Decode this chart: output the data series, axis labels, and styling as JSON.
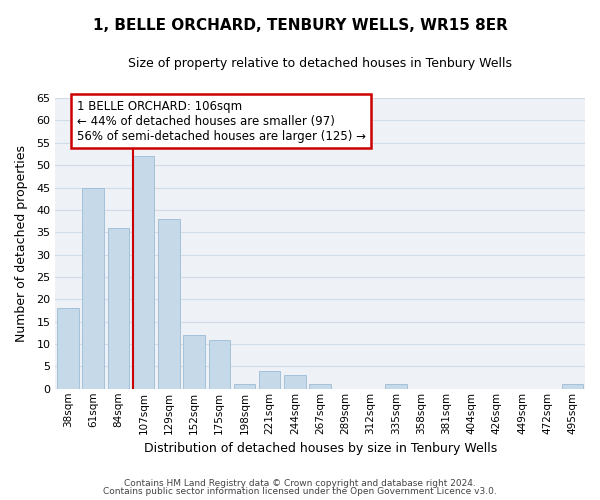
{
  "title": "1, BELLE ORCHARD, TENBURY WELLS, WR15 8ER",
  "subtitle": "Size of property relative to detached houses in Tenbury Wells",
  "xlabel": "Distribution of detached houses by size in Tenbury Wells",
  "ylabel": "Number of detached properties",
  "bar_labels": [
    "38sqm",
    "61sqm",
    "84sqm",
    "107sqm",
    "129sqm",
    "152sqm",
    "175sqm",
    "198sqm",
    "221sqm",
    "244sqm",
    "267sqm",
    "289sqm",
    "312sqm",
    "335sqm",
    "358sqm",
    "381sqm",
    "404sqm",
    "426sqm",
    "449sqm",
    "472sqm",
    "495sqm"
  ],
  "bar_values": [
    18,
    45,
    36,
    52,
    38,
    12,
    11,
    1,
    4,
    3,
    1,
    0,
    0,
    1,
    0,
    0,
    0,
    0,
    0,
    0,
    1
  ],
  "bar_color": "#c5d9e8",
  "bar_edge_color": "#9bbcd4",
  "highlight_bar_index": 3,
  "annotation_text": "1 BELLE ORCHARD: 106sqm\n← 44% of detached houses are smaller (97)\n56% of semi-detached houses are larger (125) →",
  "annotation_box_color": "#ffffff",
  "annotation_box_edge": "#cc0000",
  "ylim": [
    0,
    65
  ],
  "yticks": [
    0,
    5,
    10,
    15,
    20,
    25,
    30,
    35,
    40,
    45,
    50,
    55,
    60,
    65
  ],
  "grid_color": "#d0dce6",
  "footer_line1": "Contains HM Land Registry data © Crown copyright and database right 2024.",
  "footer_line2": "Contains public sector information licensed under the Open Government Licence v3.0.",
  "background_color": "#eef2f7",
  "fig_bg_color": "#ffffff"
}
